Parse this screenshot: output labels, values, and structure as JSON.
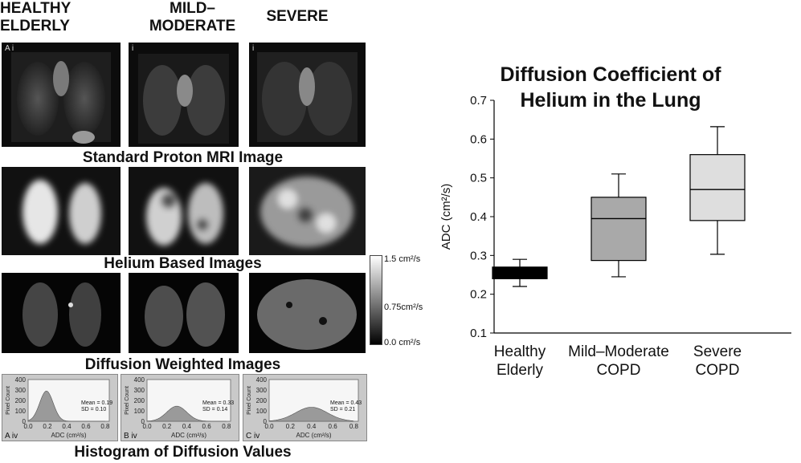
{
  "column_headers": [
    {
      "line1": "HEALTHY",
      "line2": "ELDERLY"
    },
    {
      "line1": "MILD–",
      "line2": "MODERATE"
    },
    {
      "line1": "SEVERE",
      "line2": ""
    }
  ],
  "section_titles": {
    "proton": "Standard Proton MRI Image",
    "helium": "Helium Based Images",
    "diffusion": "Diffusion Weighted Images",
    "histogram": "Histogram of Diffusion Values"
  },
  "panel_labels": {
    "proton": [
      "A i",
      "i",
      "i"
    ],
    "histogram": [
      "A iv",
      "B iv",
      "C iv"
    ]
  },
  "colorbar": {
    "top": "1.5 cm²/s",
    "mid": "0.75cm²/s",
    "bottom": "0.0 cm²/s"
  },
  "histograms": [
    {
      "mean": "Mean = 0.19",
      "sd": "SD = 0.10",
      "peak": 0.19,
      "spread": 0.07,
      "height": 290
    },
    {
      "mean": "Mean = 0.33",
      "sd": "SD = 0.14",
      "peak": 0.3,
      "spread": 0.1,
      "height": 145
    },
    {
      "mean": "Mean = 0.43",
      "sd": "SD = 0.21",
      "peak": 0.4,
      "spread": 0.15,
      "height": 135
    }
  ],
  "histogram_axes": {
    "ylabel": "Pixel Count",
    "xlabel": "ADC (cm²/s)",
    "yticks": [
      "400",
      "300",
      "200",
      "100",
      "0"
    ],
    "xticks": [
      "0.0",
      "0.2",
      "0.4",
      "0.6",
      "0.8"
    ]
  },
  "chart_data": {
    "type": "box",
    "title_line1": "Diffusion Coefficient of",
    "title_line2": "Helium in the Lung",
    "ylabel": "ADC (cm²/s)",
    "ylim": [
      0.1,
      0.7
    ],
    "yticks": [
      0.1,
      0.2,
      0.3,
      0.4,
      0.5,
      0.6,
      0.7
    ],
    "categories": [
      {
        "line1": "Healthy",
        "line2": "Elderly"
      },
      {
        "line1": "Mild–Moderate",
        "line2": "COPD"
      },
      {
        "line1": "Severe",
        "line2": "COPD"
      }
    ],
    "boxes": [
      {
        "min": 0.22,
        "q1": 0.24,
        "median": 0.255,
        "q3": 0.27,
        "max": 0.29,
        "color": "#000000"
      },
      {
        "min": 0.245,
        "q1": 0.287,
        "median": 0.395,
        "q3": 0.45,
        "max": 0.51,
        "color": "#a9a9a9"
      },
      {
        "min": 0.303,
        "q1": 0.39,
        "median": 0.47,
        "q3": 0.56,
        "max": 0.632,
        "color": "#dedede"
      }
    ],
    "grid": false
  }
}
